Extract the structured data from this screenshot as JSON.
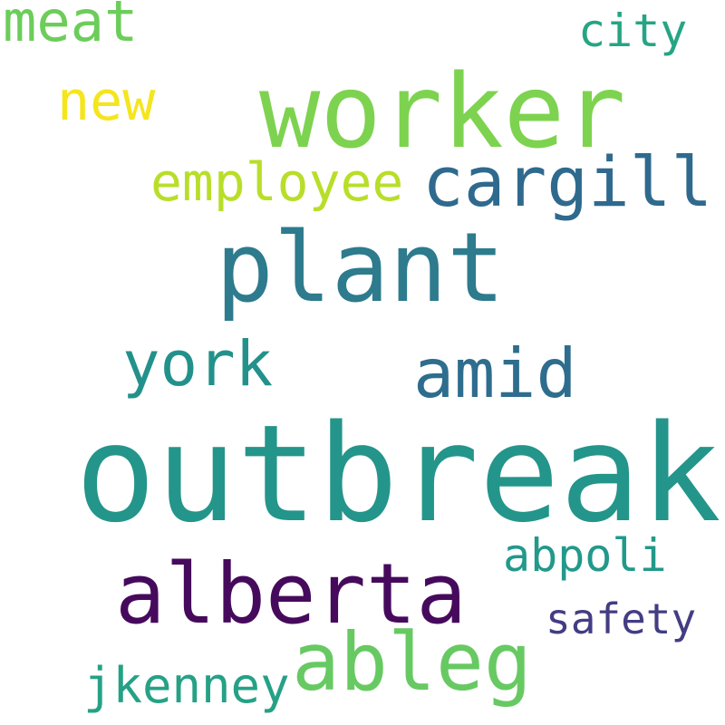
{
  "words": [
    {
      "key": "worker",
      "text": "worker",
      "color": "#7dd34f"
    },
    {
      "key": "outbreak",
      "text": "outbreak",
      "color": "#24958a"
    },
    {
      "key": "plant",
      "text": "plant",
      "color": "#2d7b8d"
    },
    {
      "key": "alberta",
      "text": "alberta",
      "color": "#460a5d"
    },
    {
      "key": "ableg",
      "text": "ableg",
      "color": "#67c962"
    },
    {
      "key": "cargill",
      "text": "cargill",
      "color": "#2f6a8e"
    },
    {
      "key": "amid",
      "text": "amid",
      "color": "#2e6d8e"
    },
    {
      "key": "york",
      "text": "york",
      "color": "#23918b"
    },
    {
      "key": "employee",
      "text": "employee",
      "color": "#b8de29"
    },
    {
      "key": "meat",
      "text": "meat",
      "color": "#6ccd5a"
    },
    {
      "key": "new",
      "text": "new",
      "color": "#f5e51e"
    },
    {
      "key": "city",
      "text": "city",
      "color": "#25a584"
    },
    {
      "key": "abpoli",
      "text": "abpoli",
      "color": "#22998a"
    },
    {
      "key": "safety",
      "text": "safety",
      "color": "#433d84"
    },
    {
      "key": "jkenney",
      "text": "jkenney",
      "color": "#25a186"
    }
  ]
}
